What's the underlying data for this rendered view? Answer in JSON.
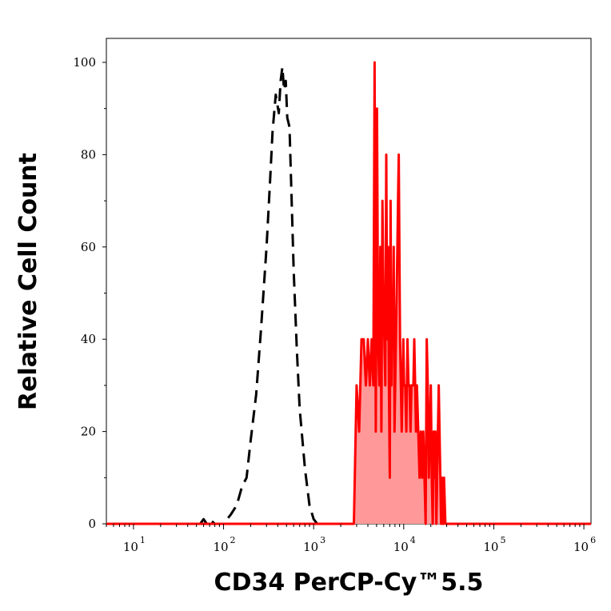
{
  "chart_data": {
    "type": "area",
    "xlabel": "CD34 PerCP-Cy™5.5",
    "ylabel": "Relative Cell Count",
    "x_scale": "log",
    "xlim": [
      5,
      1200000
    ],
    "ylim": [
      0,
      100
    ],
    "y_ticks": [
      {
        "value": 0,
        "label": "0"
      },
      {
        "value": 20,
        "label": "20"
      },
      {
        "value": 40,
        "label": "40"
      },
      {
        "value": 60,
        "label": "60"
      },
      {
        "value": 80,
        "label": "80"
      },
      {
        "value": 100,
        "label": "100"
      }
    ],
    "x_ticks": [
      {
        "value": 10,
        "base": "10",
        "exp": "1"
      },
      {
        "value": 100,
        "base": "10",
        "exp": "2"
      },
      {
        "value": 1000,
        "base": "10",
        "exp": "3"
      },
      {
        "value": 10000,
        "base": "10",
        "exp": "4"
      },
      {
        "value": 100000,
        "base": "10",
        "exp": "5"
      },
      {
        "value": 1000000,
        "base": "10",
        "exp": "6"
      }
    ],
    "grid": false,
    "series": [
      {
        "style": "dashed",
        "color": "#000000",
        "fill": "none",
        "x": [
          55,
          60,
          65,
          70,
          80,
          100,
          120,
          140,
          160,
          180,
          200,
          230,
          260,
          300,
          330,
          350,
          380,
          410,
          430,
          450,
          470,
          490,
          510,
          540,
          570,
          600,
          650,
          700,
          800,
          900,
          1000,
          1100
        ],
        "y": [
          0,
          1,
          0,
          1,
          0,
          0,
          2,
          4,
          8,
          10,
          18,
          28,
          42,
          60,
          75,
          85,
          93,
          89,
          96,
          99,
          94,
          96,
          88,
          86,
          70,
          55,
          38,
          25,
          12,
          4,
          1,
          0
        ]
      },
      {
        "style": "solid",
        "color": "#ff0000",
        "fill": "#ff9999",
        "x": [
          5,
          2800,
          3000,
          3200,
          3400,
          3600,
          3800,
          4000,
          4200,
          4400,
          4600,
          4750,
          4900,
          5050,
          5200,
          5350,
          5500,
          5650,
          5800,
          5950,
          6100,
          6250,
          6400,
          6550,
          6700,
          6850,
          7000,
          7150,
          7300,
          7450,
          7600,
          7750,
          7900,
          8050,
          8200,
          8350,
          8500,
          8650,
          8800,
          8950,
          9100,
          9300,
          9500,
          9700,
          9900,
          10100,
          10400,
          10700,
          11000,
          11300,
          11600,
          11900,
          12200,
          12500,
          12800,
          13100,
          13400,
          13700,
          14000,
          14500,
          15000,
          15500,
          16000,
          16500,
          17000,
          17500,
          18000,
          18500,
          19000,
          19500,
          20000,
          20500,
          21000,
          21500,
          22000,
          22500,
          23000,
          23500,
          24000,
          24500,
          25000,
          25500,
          26000,
          26500,
          27000,
          27500,
          28000,
          29000,
          30000,
          1200000
        ],
        "y": [
          0,
          0,
          30,
          20,
          40,
          40,
          30,
          40,
          30,
          40,
          30,
          100,
          20,
          90,
          40,
          30,
          60,
          20,
          70,
          50,
          40,
          30,
          80,
          40,
          60,
          30,
          10,
          70,
          30,
          50,
          40,
          60,
          20,
          30,
          40,
          50,
          60,
          70,
          80,
          60,
          40,
          30,
          20,
          30,
          40,
          30,
          30,
          20,
          40,
          30,
          30,
          20,
          30,
          30,
          30,
          40,
          30,
          20,
          30,
          20,
          10,
          20,
          10,
          20,
          10,
          0,
          40,
          30,
          10,
          20,
          30,
          10,
          0,
          20,
          10,
          20,
          0,
          10,
          20,
          30,
          20,
          10,
          0,
          10,
          0,
          0,
          10,
          0,
          0,
          0
        ]
      }
    ]
  }
}
